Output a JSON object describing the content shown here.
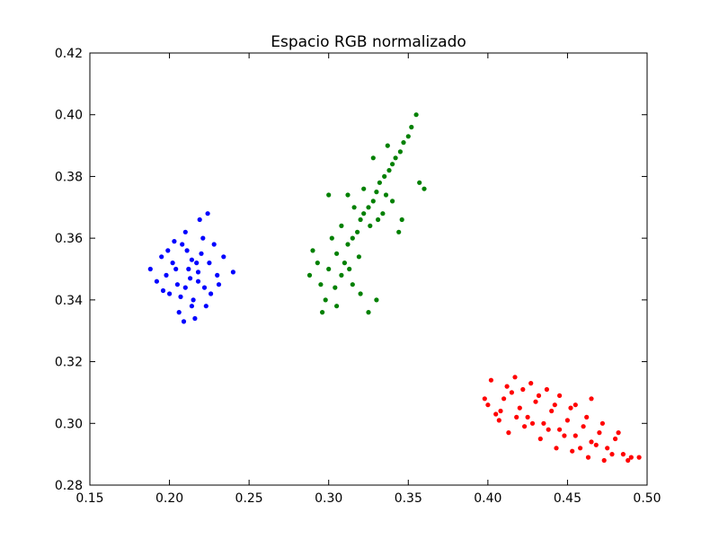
{
  "chart_data": {
    "type": "scatter",
    "title": "Espacio RGB normalizado",
    "xlabel": "",
    "ylabel": "",
    "xlim": [
      0.15,
      0.5
    ],
    "ylim": [
      0.28,
      0.42
    ],
    "xticks": [
      "0.15",
      "0.20",
      "0.25",
      "0.30",
      "0.35",
      "0.40",
      "0.45",
      "0.50"
    ],
    "yticks": [
      "0.28",
      "0.30",
      "0.32",
      "0.34",
      "0.36",
      "0.38",
      "0.40",
      "0.42"
    ],
    "grid": false,
    "legend": "none",
    "series": [
      {
        "color": "#0000ff",
        "points": [
          [
            0.212,
            0.35
          ],
          [
            0.205,
            0.345
          ],
          [
            0.22,
            0.355
          ],
          [
            0.198,
            0.348
          ],
          [
            0.215,
            0.34
          ],
          [
            0.225,
            0.352
          ],
          [
            0.208,
            0.358
          ],
          [
            0.218,
            0.346
          ],
          [
            0.202,
            0.352
          ],
          [
            0.222,
            0.344
          ],
          [
            0.21,
            0.362
          ],
          [
            0.195,
            0.354
          ],
          [
            0.23,
            0.348
          ],
          [
            0.214,
            0.338
          ],
          [
            0.2,
            0.342
          ],
          [
            0.228,
            0.358
          ],
          [
            0.206,
            0.336
          ],
          [
            0.219,
            0.366
          ],
          [
            0.188,
            0.35
          ],
          [
            0.24,
            0.349
          ],
          [
            0.216,
            0.334
          ],
          [
            0.209,
            0.333
          ],
          [
            0.224,
            0.368
          ],
          [
            0.192,
            0.346
          ],
          [
            0.234,
            0.354
          ],
          [
            0.211,
            0.356
          ],
          [
            0.204,
            0.35
          ],
          [
            0.217,
            0.352
          ],
          [
            0.199,
            0.356
          ],
          [
            0.226,
            0.342
          ],
          [
            0.213,
            0.347
          ],
          [
            0.207,
            0.341
          ],
          [
            0.221,
            0.36
          ],
          [
            0.196,
            0.343
          ],
          [
            0.231,
            0.345
          ],
          [
            0.203,
            0.359
          ],
          [
            0.223,
            0.338
          ],
          [
            0.21,
            0.344
          ],
          [
            0.214,
            0.353
          ],
          [
            0.218,
            0.349
          ]
        ]
      },
      {
        "color": "#008000",
        "points": [
          [
            0.3,
            0.35
          ],
          [
            0.295,
            0.345
          ],
          [
            0.305,
            0.355
          ],
          [
            0.31,
            0.352
          ],
          [
            0.29,
            0.356
          ],
          [
            0.315,
            0.36
          ],
          [
            0.32,
            0.366
          ],
          [
            0.325,
            0.37
          ],
          [
            0.33,
            0.375
          ],
          [
            0.335,
            0.38
          ],
          [
            0.34,
            0.384
          ],
          [
            0.345,
            0.388
          ],
          [
            0.35,
            0.393
          ],
          [
            0.355,
            0.4
          ],
          [
            0.312,
            0.358
          ],
          [
            0.318,
            0.362
          ],
          [
            0.322,
            0.368
          ],
          [
            0.328,
            0.372
          ],
          [
            0.332,
            0.378
          ],
          [
            0.338,
            0.382
          ],
          [
            0.342,
            0.386
          ],
          [
            0.347,
            0.391
          ],
          [
            0.352,
            0.396
          ],
          [
            0.298,
            0.34
          ],
          [
            0.305,
            0.338
          ],
          [
            0.32,
            0.342
          ],
          [
            0.325,
            0.336
          ],
          [
            0.33,
            0.34
          ],
          [
            0.315,
            0.345
          ],
          [
            0.308,
            0.348
          ],
          [
            0.326,
            0.364
          ],
          [
            0.334,
            0.368
          ],
          [
            0.34,
            0.372
          ],
          [
            0.316,
            0.37
          ],
          [
            0.308,
            0.364
          ],
          [
            0.3,
            0.374
          ],
          [
            0.328,
            0.386
          ],
          [
            0.337,
            0.39
          ],
          [
            0.36,
            0.376
          ],
          [
            0.357,
            0.378
          ],
          [
            0.344,
            0.362
          ],
          [
            0.346,
            0.366
          ],
          [
            0.293,
            0.352
          ],
          [
            0.288,
            0.348
          ],
          [
            0.302,
            0.36
          ],
          [
            0.312,
            0.374
          ],
          [
            0.322,
            0.376
          ],
          [
            0.336,
            0.374
          ],
          [
            0.331,
            0.366
          ],
          [
            0.319,
            0.354
          ],
          [
            0.313,
            0.35
          ],
          [
            0.304,
            0.344
          ],
          [
            0.296,
            0.336
          ]
        ]
      },
      {
        "color": "#ff0000",
        "points": [
          [
            0.4,
            0.306
          ],
          [
            0.405,
            0.303
          ],
          [
            0.41,
            0.308
          ],
          [
            0.415,
            0.31
          ],
          [
            0.42,
            0.305
          ],
          [
            0.425,
            0.302
          ],
          [
            0.43,
            0.307
          ],
          [
            0.435,
            0.3
          ],
          [
            0.44,
            0.304
          ],
          [
            0.445,
            0.298
          ],
          [
            0.45,
            0.301
          ],
          [
            0.455,
            0.296
          ],
          [
            0.46,
            0.299
          ],
          [
            0.465,
            0.294
          ],
          [
            0.47,
            0.297
          ],
          [
            0.475,
            0.292
          ],
          [
            0.48,
            0.295
          ],
          [
            0.485,
            0.29
          ],
          [
            0.49,
            0.289
          ],
          [
            0.495,
            0.289
          ],
          [
            0.488,
            0.288
          ],
          [
            0.478,
            0.29
          ],
          [
            0.468,
            0.293
          ],
          [
            0.458,
            0.292
          ],
          [
            0.448,
            0.296
          ],
          [
            0.438,
            0.298
          ],
          [
            0.428,
            0.3
          ],
          [
            0.418,
            0.302
          ],
          [
            0.408,
            0.304
          ],
          [
            0.398,
            0.308
          ],
          [
            0.402,
            0.314
          ],
          [
            0.412,
            0.312
          ],
          [
            0.422,
            0.311
          ],
          [
            0.432,
            0.309
          ],
          [
            0.442,
            0.306
          ],
          [
            0.452,
            0.305
          ],
          [
            0.462,
            0.302
          ],
          [
            0.472,
            0.3
          ],
          [
            0.482,
            0.297
          ],
          [
            0.465,
            0.308
          ],
          [
            0.455,
            0.306
          ],
          [
            0.445,
            0.309
          ],
          [
            0.427,
            0.313
          ],
          [
            0.437,
            0.311
          ],
          [
            0.417,
            0.315
          ],
          [
            0.407,
            0.301
          ],
          [
            0.413,
            0.297
          ],
          [
            0.423,
            0.299
          ],
          [
            0.433,
            0.295
          ],
          [
            0.443,
            0.292
          ],
          [
            0.453,
            0.291
          ],
          [
            0.463,
            0.289
          ],
          [
            0.473,
            0.288
          ]
        ]
      }
    ]
  }
}
